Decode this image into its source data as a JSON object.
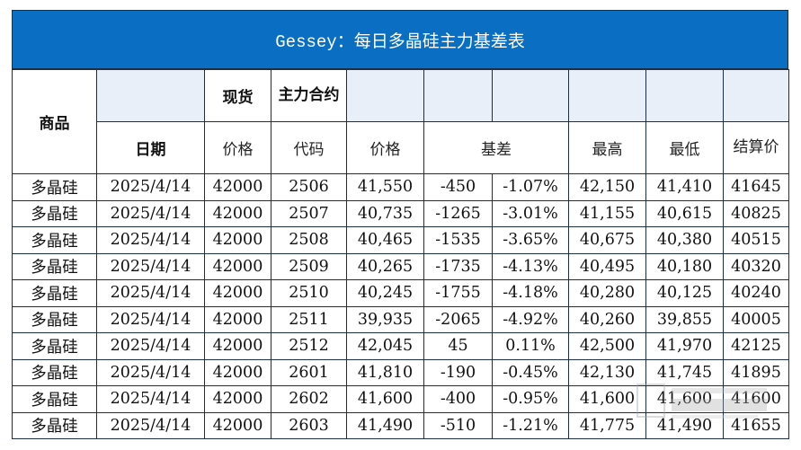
{
  "title": "Gessey：每日多晶硅主力基差表",
  "header": {
    "product": "商品",
    "date": "日期",
    "spot": "现货",
    "spot_price": "价格",
    "main_contract": "主力合约",
    "code": "代码",
    "price": "价格",
    "basis": "基差",
    "high": "最高",
    "low": "最低",
    "settle": "结算价"
  },
  "rows": [
    {
      "product": "多晶硅",
      "date": "2025/4/14",
      "spot": "42000",
      "code": "2506",
      "price": "41,550",
      "basis": "-450",
      "basis_pct": "-1.07%",
      "high": "42,150",
      "low": "41,410",
      "settle": "41645"
    },
    {
      "product": "多晶硅",
      "date": "2025/4/14",
      "spot": "42000",
      "code": "2507",
      "price": "40,735",
      "basis": "-1265",
      "basis_pct": "-3.01%",
      "high": "41,155",
      "low": "40,615",
      "settle": "40825"
    },
    {
      "product": "多晶硅",
      "date": "2025/4/14",
      "spot": "42000",
      "code": "2508",
      "price": "40,465",
      "basis": "-1535",
      "basis_pct": "-3.65%",
      "high": "40,675",
      "low": "40,380",
      "settle": "40515"
    },
    {
      "product": "多晶硅",
      "date": "2025/4/14",
      "spot": "42000",
      "code": "2509",
      "price": "40,265",
      "basis": "-1735",
      "basis_pct": "-4.13%",
      "high": "40,495",
      "low": "40,180",
      "settle": "40320"
    },
    {
      "product": "多晶硅",
      "date": "2025/4/14",
      "spot": "42000",
      "code": "2510",
      "price": "40,245",
      "basis": "-1755",
      "basis_pct": "-4.18%",
      "high": "40,280",
      "low": "40,125",
      "settle": "40240"
    },
    {
      "product": "多晶硅",
      "date": "2025/4/14",
      "spot": "42000",
      "code": "2511",
      "price": "39,935",
      "basis": "-2065",
      "basis_pct": "-4.92%",
      "high": "40,260",
      "low": "39,855",
      "settle": "40005"
    },
    {
      "product": "多晶硅",
      "date": "2025/4/14",
      "spot": "42000",
      "code": "2512",
      "price": "42,045",
      "basis": "45",
      "basis_pct": "0.11%",
      "high": "42,500",
      "low": "41,970",
      "settle": "42125"
    },
    {
      "product": "多晶硅",
      "date": "2025/4/14",
      "spot": "42000",
      "code": "2601",
      "price": "41,810",
      "basis": "-190",
      "basis_pct": "-0.45%",
      "high": "42,130",
      "low": "41,745",
      "settle": "41895"
    },
    {
      "product": "多晶硅",
      "date": "2025/4/14",
      "spot": "42000",
      "code": "2602",
      "price": "41,600",
      "basis": "-400",
      "basis_pct": "-0.95%",
      "high": "41,600",
      "low": "41,600",
      "settle": "41600"
    },
    {
      "product": "多晶硅",
      "date": "2025/4/14",
      "spot": "42000",
      "code": "2603",
      "price": "41,490",
      "basis": "-510",
      "basis_pct": "-1.21%",
      "high": "41,775",
      "low": "41,490",
      "settle": "41655"
    }
  ],
  "colors": {
    "title_bg": "#0a6fc2",
    "title_text": "#ffffff",
    "negative": "#e0191a",
    "product_text": "#1a3aa8",
    "header_blank_bg": "#e8eff9"
  }
}
